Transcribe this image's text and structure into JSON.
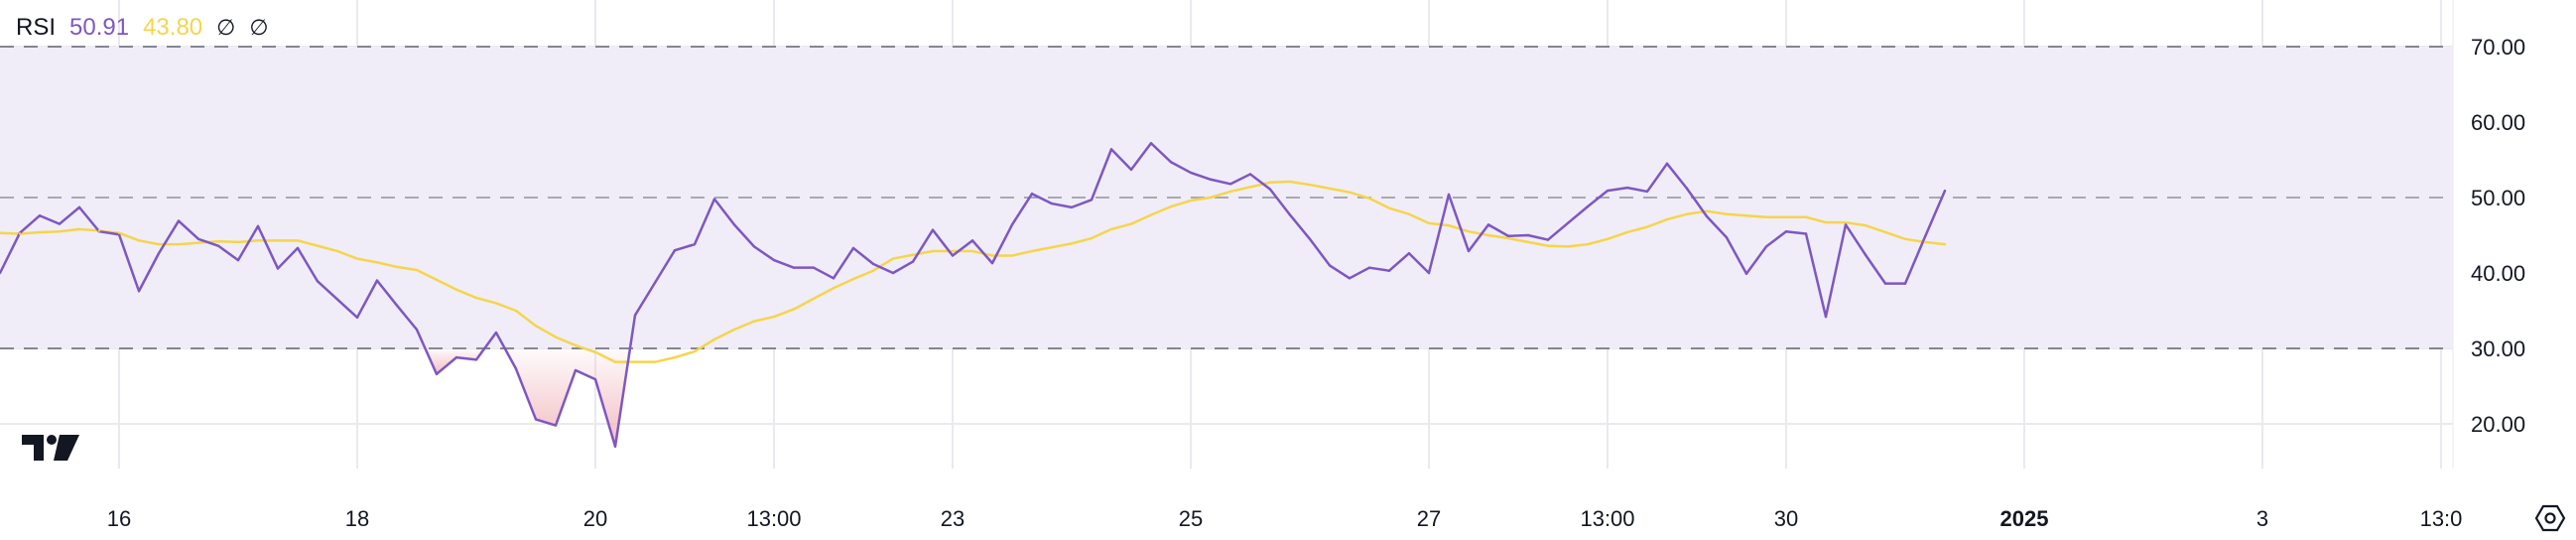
{
  "legend": {
    "name": "RSI",
    "rsi_value": "50.91",
    "ma_value": "43.80",
    "icons": [
      "empty-set-icon",
      "empty-set-icon"
    ],
    "icon_glyph": "∅"
  },
  "colors": {
    "rsi": "#7e57c2",
    "ma": "#f5d54c",
    "band": "#f0edf8",
    "levels": "#787b86",
    "grid": "#e9e9ef",
    "oversold": "#f2b8be"
  },
  "settings_icon": "settings-hexagon-icon",
  "logo": "TV",
  "chart_data": {
    "type": "line",
    "title": "RSI",
    "ylim": [
      14.1,
      76.2
    ],
    "y_ticks": [
      "70.00",
      "60.00",
      "50.00",
      "40.00",
      "30.00",
      "20.00"
    ],
    "y_tick_values": [
      70,
      60,
      50,
      40,
      30,
      20
    ],
    "levels": {
      "upper": 70,
      "middle": 50,
      "lower": 30
    },
    "x_ticks": [
      {
        "label": "16",
        "index": 6,
        "bold": false
      },
      {
        "label": "18",
        "index": 18,
        "bold": false
      },
      {
        "label": "20",
        "index": 30,
        "bold": false
      },
      {
        "label": "13:00",
        "index": 39,
        "bold": false
      },
      {
        "label": "23",
        "index": 48,
        "bold": false
      },
      {
        "label": "25",
        "index": 60,
        "bold": false
      },
      {
        "label": "27",
        "index": 72,
        "bold": false
      },
      {
        "label": "13:00",
        "index": 81,
        "bold": false
      },
      {
        "label": "30",
        "index": 90,
        "bold": false
      },
      {
        "label": "2025",
        "index": 102,
        "bold": true
      },
      {
        "label": "3",
        "index": 114,
        "bold": false
      },
      {
        "label": "13:0",
        "index": 123,
        "bold": false
      }
    ],
    "series": [
      {
        "name": "RSI",
        "values": [
          40.0,
          45.3,
          47.6,
          46.5,
          48.7,
          45.5,
          45.1,
          37.6,
          42.6,
          46.9,
          44.5,
          43.6,
          41.7,
          46.2,
          40.6,
          43.3,
          38.9,
          36.5,
          34.1,
          39.0,
          35.7,
          32.5,
          26.6,
          28.8,
          28.5,
          32.1,
          27.3,
          20.6,
          19.8,
          27.1,
          25.9,
          17.0,
          34.4,
          38.7,
          43.0,
          43.8,
          49.8,
          46.4,
          43.5,
          41.7,
          40.7,
          40.7,
          39.3,
          43.3,
          41.2,
          40.0,
          41.5,
          45.7,
          42.3,
          44.3,
          41.3,
          46.4,
          50.5,
          49.2,
          48.7,
          49.7,
          56.4,
          53.7,
          57.2,
          54.7,
          53.3,
          52.4,
          51.8,
          53.1,
          51.1,
          47.7,
          44.5,
          41.0,
          39.3,
          40.7,
          40.3,
          42.6,
          40.0,
          50.4,
          42.9,
          46.4,
          44.9,
          45.0,
          44.4,
          46.6,
          48.8,
          50.9,
          51.3,
          50.8,
          54.5,
          51.2,
          47.5,
          44.7,
          39.9,
          43.5,
          45.5,
          45.2,
          34.2,
          46.4,
          42.4,
          38.6,
          38.6,
          44.8,
          50.91
        ]
      },
      {
        "name": "RSI-based MA",
        "values": [
          45.3,
          45.2,
          45.4,
          45.5,
          45.8,
          45.6,
          45.3,
          44.3,
          43.8,
          43.8,
          44.0,
          44.2,
          44.1,
          44.3,
          44.3,
          44.3,
          43.6,
          42.9,
          41.9,
          41.4,
          40.8,
          40.4,
          39.1,
          37.8,
          36.7,
          36.0,
          35.0,
          33.0,
          31.5,
          30.4,
          29.5,
          28.2,
          28.2,
          28.2,
          28.8,
          29.6,
          31.2,
          32.5,
          33.6,
          34.2,
          35.2,
          36.6,
          38.0,
          39.2,
          40.3,
          41.9,
          42.4,
          42.9,
          42.9,
          42.9,
          42.3,
          42.3,
          42.9,
          43.4,
          43.9,
          44.6,
          45.8,
          46.5,
          47.7,
          48.8,
          49.6,
          50.0,
          50.8,
          51.4,
          52.0,
          52.1,
          51.7,
          51.2,
          50.7,
          49.9,
          48.6,
          47.8,
          46.6,
          46.3,
          45.5,
          45.0,
          44.6,
          44.1,
          43.6,
          43.5,
          43.8,
          44.5,
          45.4,
          46.1,
          47.1,
          47.8,
          48.2,
          47.8,
          47.6,
          47.4,
          47.4,
          47.4,
          46.7,
          46.7,
          46.3,
          45.4,
          44.5,
          44.1,
          43.8
        ]
      }
    ]
  }
}
